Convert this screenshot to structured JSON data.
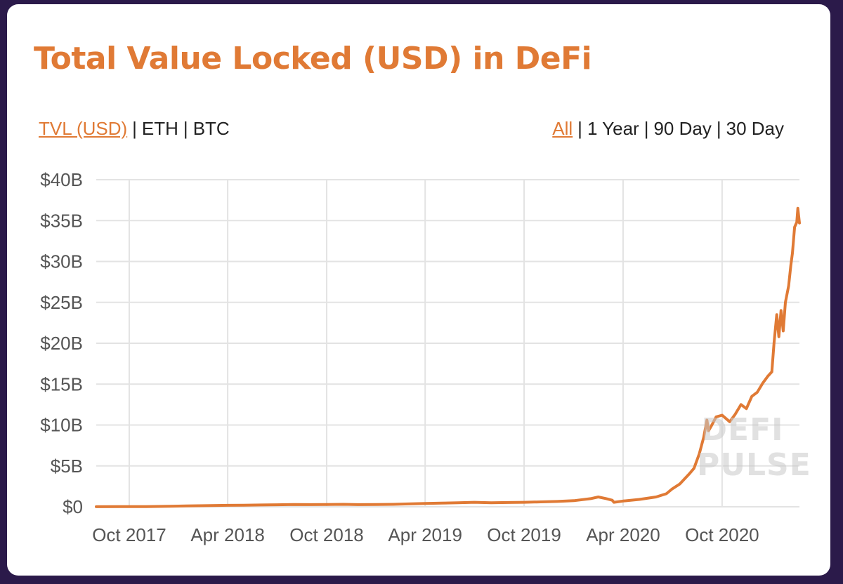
{
  "title": "Total Value Locked (USD) in DeFi",
  "colors": {
    "accent": "#e07a35",
    "page_background": "#2b1a4a",
    "grid": "#e3e3e3"
  },
  "metric_options": [
    {
      "label": "TVL (USD)",
      "active": true
    },
    {
      "label": "ETH",
      "active": false
    },
    {
      "label": "BTC",
      "active": false
    }
  ],
  "range_options": [
    {
      "label": "All",
      "active": true
    },
    {
      "label": "1 Year",
      "active": false
    },
    {
      "label": "90 Day",
      "active": false
    },
    {
      "label": "30 Day",
      "active": false
    }
  ],
  "separator": "|",
  "watermark": {
    "line1": "DEFI",
    "line2": "PULSE"
  },
  "chart_data": {
    "type": "line",
    "title": "Total Value Locked (USD) in DeFi",
    "xlabel": "",
    "ylabel": "",
    "x_range": [
      "2017-08-01",
      "2021-02-21"
    ],
    "ylim": [
      0,
      40
    ],
    "y_unit": "billion USD",
    "y_ticks": [
      {
        "value": 0,
        "label": "$0"
      },
      {
        "value": 5,
        "label": "$5B"
      },
      {
        "value": 10,
        "label": "$10B"
      },
      {
        "value": 15,
        "label": "$15B"
      },
      {
        "value": 20,
        "label": "$20B"
      },
      {
        "value": 25,
        "label": "$25B"
      },
      {
        "value": 30,
        "label": "$30B"
      },
      {
        "value": 35,
        "label": "$35B"
      },
      {
        "value": 40,
        "label": "$40B"
      }
    ],
    "x_ticks": [
      {
        "date": "2017-10-01",
        "label": "Oct 2017"
      },
      {
        "date": "2018-04-01",
        "label": "Apr 2018"
      },
      {
        "date": "2018-10-01",
        "label": "Oct 2018"
      },
      {
        "date": "2019-04-01",
        "label": "Apr 2019"
      },
      {
        "date": "2019-10-01",
        "label": "Oct 2019"
      },
      {
        "date": "2020-04-01",
        "label": "Apr 2020"
      },
      {
        "date": "2020-10-01",
        "label": "Oct 2020"
      }
    ],
    "grid": true,
    "series": [
      {
        "color": "#e07a35",
        "points": [
          [
            "2017-08-01",
            0.01
          ],
          [
            "2017-09-15",
            0.02
          ],
          [
            "2017-11-01",
            0.03
          ],
          [
            "2017-12-15",
            0.06
          ],
          [
            "2018-01-15",
            0.1
          ],
          [
            "2018-03-01",
            0.15
          ],
          [
            "2018-04-01",
            0.18
          ],
          [
            "2018-05-01",
            0.2
          ],
          [
            "2018-06-01",
            0.22
          ],
          [
            "2018-07-01",
            0.25
          ],
          [
            "2018-08-01",
            0.28
          ],
          [
            "2018-09-01",
            0.27
          ],
          [
            "2018-10-01",
            0.28
          ],
          [
            "2018-11-01",
            0.3
          ],
          [
            "2018-12-01",
            0.27
          ],
          [
            "2019-01-01",
            0.28
          ],
          [
            "2019-02-01",
            0.3
          ],
          [
            "2019-03-01",
            0.35
          ],
          [
            "2019-04-01",
            0.4
          ],
          [
            "2019-05-01",
            0.45
          ],
          [
            "2019-06-01",
            0.5
          ],
          [
            "2019-07-01",
            0.55
          ],
          [
            "2019-08-01",
            0.5
          ],
          [
            "2019-09-01",
            0.52
          ],
          [
            "2019-10-01",
            0.55
          ],
          [
            "2019-11-01",
            0.6
          ],
          [
            "2019-12-01",
            0.65
          ],
          [
            "2020-01-01",
            0.75
          ],
          [
            "2020-02-01",
            1.0
          ],
          [
            "2020-02-15",
            1.2
          ],
          [
            "2020-03-01",
            1.0
          ],
          [
            "2020-03-12",
            0.8
          ],
          [
            "2020-03-15",
            0.55
          ],
          [
            "2020-04-01",
            0.7
          ],
          [
            "2020-05-01",
            0.9
          ],
          [
            "2020-06-01",
            1.2
          ],
          [
            "2020-06-20",
            1.6
          ],
          [
            "2020-07-01",
            2.2
          ],
          [
            "2020-07-15",
            2.8
          ],
          [
            "2020-08-01",
            4.0
          ],
          [
            "2020-08-10",
            4.7
          ],
          [
            "2020-08-20",
            6.5
          ],
          [
            "2020-08-28",
            8.5
          ],
          [
            "2020-09-03",
            10.6
          ],
          [
            "2020-09-06",
            9.3
          ],
          [
            "2020-09-12",
            10.0
          ],
          [
            "2020-09-20",
            11.0
          ],
          [
            "2020-10-01",
            11.2
          ],
          [
            "2020-10-15",
            10.4
          ],
          [
            "2020-10-25",
            11.3
          ],
          [
            "2020-11-05",
            12.5
          ],
          [
            "2020-11-15",
            12.0
          ],
          [
            "2020-11-25",
            13.5
          ],
          [
            "2020-12-05",
            14.0
          ],
          [
            "2020-12-15",
            15.1
          ],
          [
            "2020-12-25",
            16.0
          ],
          [
            "2021-01-01",
            16.5
          ],
          [
            "2021-01-05",
            20.0
          ],
          [
            "2021-01-10",
            23.5
          ],
          [
            "2021-01-14",
            20.8
          ],
          [
            "2021-01-18",
            24.0
          ],
          [
            "2021-01-22",
            21.5
          ],
          [
            "2021-01-26",
            25.0
          ],
          [
            "2021-02-01",
            27.0
          ],
          [
            "2021-02-05",
            29.5
          ],
          [
            "2021-02-08",
            31.0
          ],
          [
            "2021-02-12",
            34.2
          ],
          [
            "2021-02-16",
            34.8
          ],
          [
            "2021-02-18",
            36.5
          ],
          [
            "2021-02-21",
            34.7
          ]
        ]
      }
    ]
  }
}
